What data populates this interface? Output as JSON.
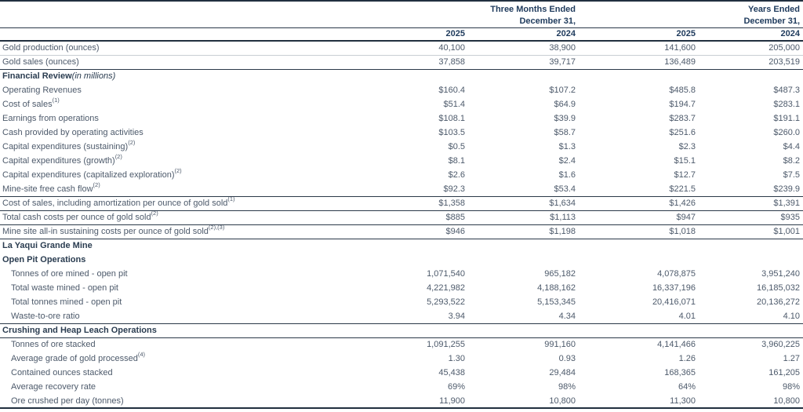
{
  "colors": {
    "text_regular": "#4d5a6b",
    "text_navy_header": "#1e3a5c",
    "text_section_bold": "#2a3c50",
    "rule_dark": "#2b3949",
    "rule_heavy": "#212f3f",
    "rule_light": "#c9ced4",
    "background": "#ffffff"
  },
  "header": {
    "group1_line1": "Three Months Ended",
    "group1_line2": "December 31,",
    "group2_line1": "Years Ended",
    "group2_line2": "December 31,",
    "years": [
      "2025",
      "2024",
      "2025",
      "2024"
    ]
  },
  "table": {
    "rows": [
      {
        "label": "Gold production (ounces)",
        "values": [
          "40,100",
          "38,900",
          "141,600",
          "205,000"
        ],
        "rule_below": "light"
      },
      {
        "label": "Gold sales (ounces)",
        "values": [
          "37,858",
          "39,717",
          "136,489",
          "203,519"
        ],
        "rule_below": "dark"
      },
      {
        "label": "Financial Review",
        "suffix_italic": "(in millions)",
        "bold": true
      },
      {
        "label": "Operating Revenues",
        "values": [
          "$160.4",
          "$107.2",
          "$485.8",
          "$487.3"
        ]
      },
      {
        "label": "Cost of sales",
        "sup": "(1)",
        "values": [
          "$51.4",
          "$64.9",
          "$194.7",
          "$283.1"
        ]
      },
      {
        "label": "Earnings from operations",
        "values": [
          "$108.1",
          "$39.9",
          "$283.7",
          "$191.1"
        ]
      },
      {
        "label": "Cash provided by operating activities",
        "values": [
          "$103.5",
          "$58.7",
          "$251.6",
          "$260.0"
        ]
      },
      {
        "label": "Capital expenditures (sustaining)",
        "sup": "(2)",
        "values": [
          "$0.5",
          "$1.3",
          "$2.3",
          "$4.4"
        ]
      },
      {
        "label": "Capital expenditures (growth)",
        "sup": "(2)",
        "values": [
          "$8.1",
          "$2.4",
          "$15.1",
          "$8.2"
        ]
      },
      {
        "label": "Capital expenditures (capitalized exploration)",
        "sup": "(2)",
        "values": [
          "$2.6",
          "$1.6",
          "$12.7",
          "$7.5"
        ]
      },
      {
        "label": "Mine-site free cash flow",
        "sup": "(2)",
        "values": [
          "$92.3",
          "$53.4",
          "$221.5",
          "$239.9"
        ],
        "rule_below": "dark"
      },
      {
        "label": "Cost of sales, including amortization per ounce of gold sold",
        "sup": "(1)",
        "values": [
          "$1,358",
          "$1,634",
          "$1,426",
          "$1,391"
        ],
        "rule_below": "dark"
      },
      {
        "label": "Total cash costs per ounce of gold sold",
        "sup": "(2)",
        "values": [
          "$885",
          "$1,113",
          "$947",
          "$935"
        ],
        "rule_below": "dark"
      },
      {
        "label": "Mine site all-in sustaining costs per ounce of gold sold",
        "sup": "(2),(3)",
        "values": [
          "$946",
          "$1,198",
          "$1,018",
          "$1,001"
        ],
        "rule_below": "dark"
      },
      {
        "label": "La Yaqui Grande Mine",
        "bold": true
      },
      {
        "label": "Open Pit Operations",
        "bold": true
      },
      {
        "label": "Tonnes of ore mined - open pit",
        "indent": true,
        "values": [
          "1,071,540",
          "965,182",
          "4,078,875",
          "3,951,240"
        ]
      },
      {
        "label": "Total waste mined - open pit",
        "indent": true,
        "values": [
          "4,221,982",
          "4,188,162",
          "16,337,196",
          "16,185,032"
        ]
      },
      {
        "label": "Total tonnes mined - open pit",
        "indent": true,
        "values": [
          "5,293,522",
          "5,153,345",
          "20,416,071",
          "20,136,272"
        ]
      },
      {
        "label": "Waste-to-ore ratio",
        "indent": true,
        "values": [
          "3.94",
          "4.34",
          "4.01",
          "4.10"
        ],
        "rule_below": "dark"
      },
      {
        "label": "Crushing and Heap Leach Operations",
        "bold": true,
        "rule_below": "dark"
      },
      {
        "label": "Tonnes of ore stacked",
        "indent": true,
        "values": [
          "1,091,255",
          "991,160",
          "4,141,466",
          "3,960,225"
        ]
      },
      {
        "label": "Average grade of gold processed",
        "sup": "(4)",
        "indent": true,
        "values": [
          "1.30",
          "0.93",
          "1.26",
          "1.27"
        ]
      },
      {
        "label": "Contained ounces stacked",
        "indent": true,
        "values": [
          "45,438",
          "29,484",
          "168,365",
          "161,205"
        ]
      },
      {
        "label": "Average recovery rate",
        "indent": true,
        "values": [
          "69%",
          "98%",
          "64%",
          "98%"
        ]
      },
      {
        "label": "Ore crushed per day (tonnes)",
        "indent": true,
        "values": [
          "11,900",
          "10,800",
          "11,300",
          "10,800"
        ]
      }
    ]
  }
}
